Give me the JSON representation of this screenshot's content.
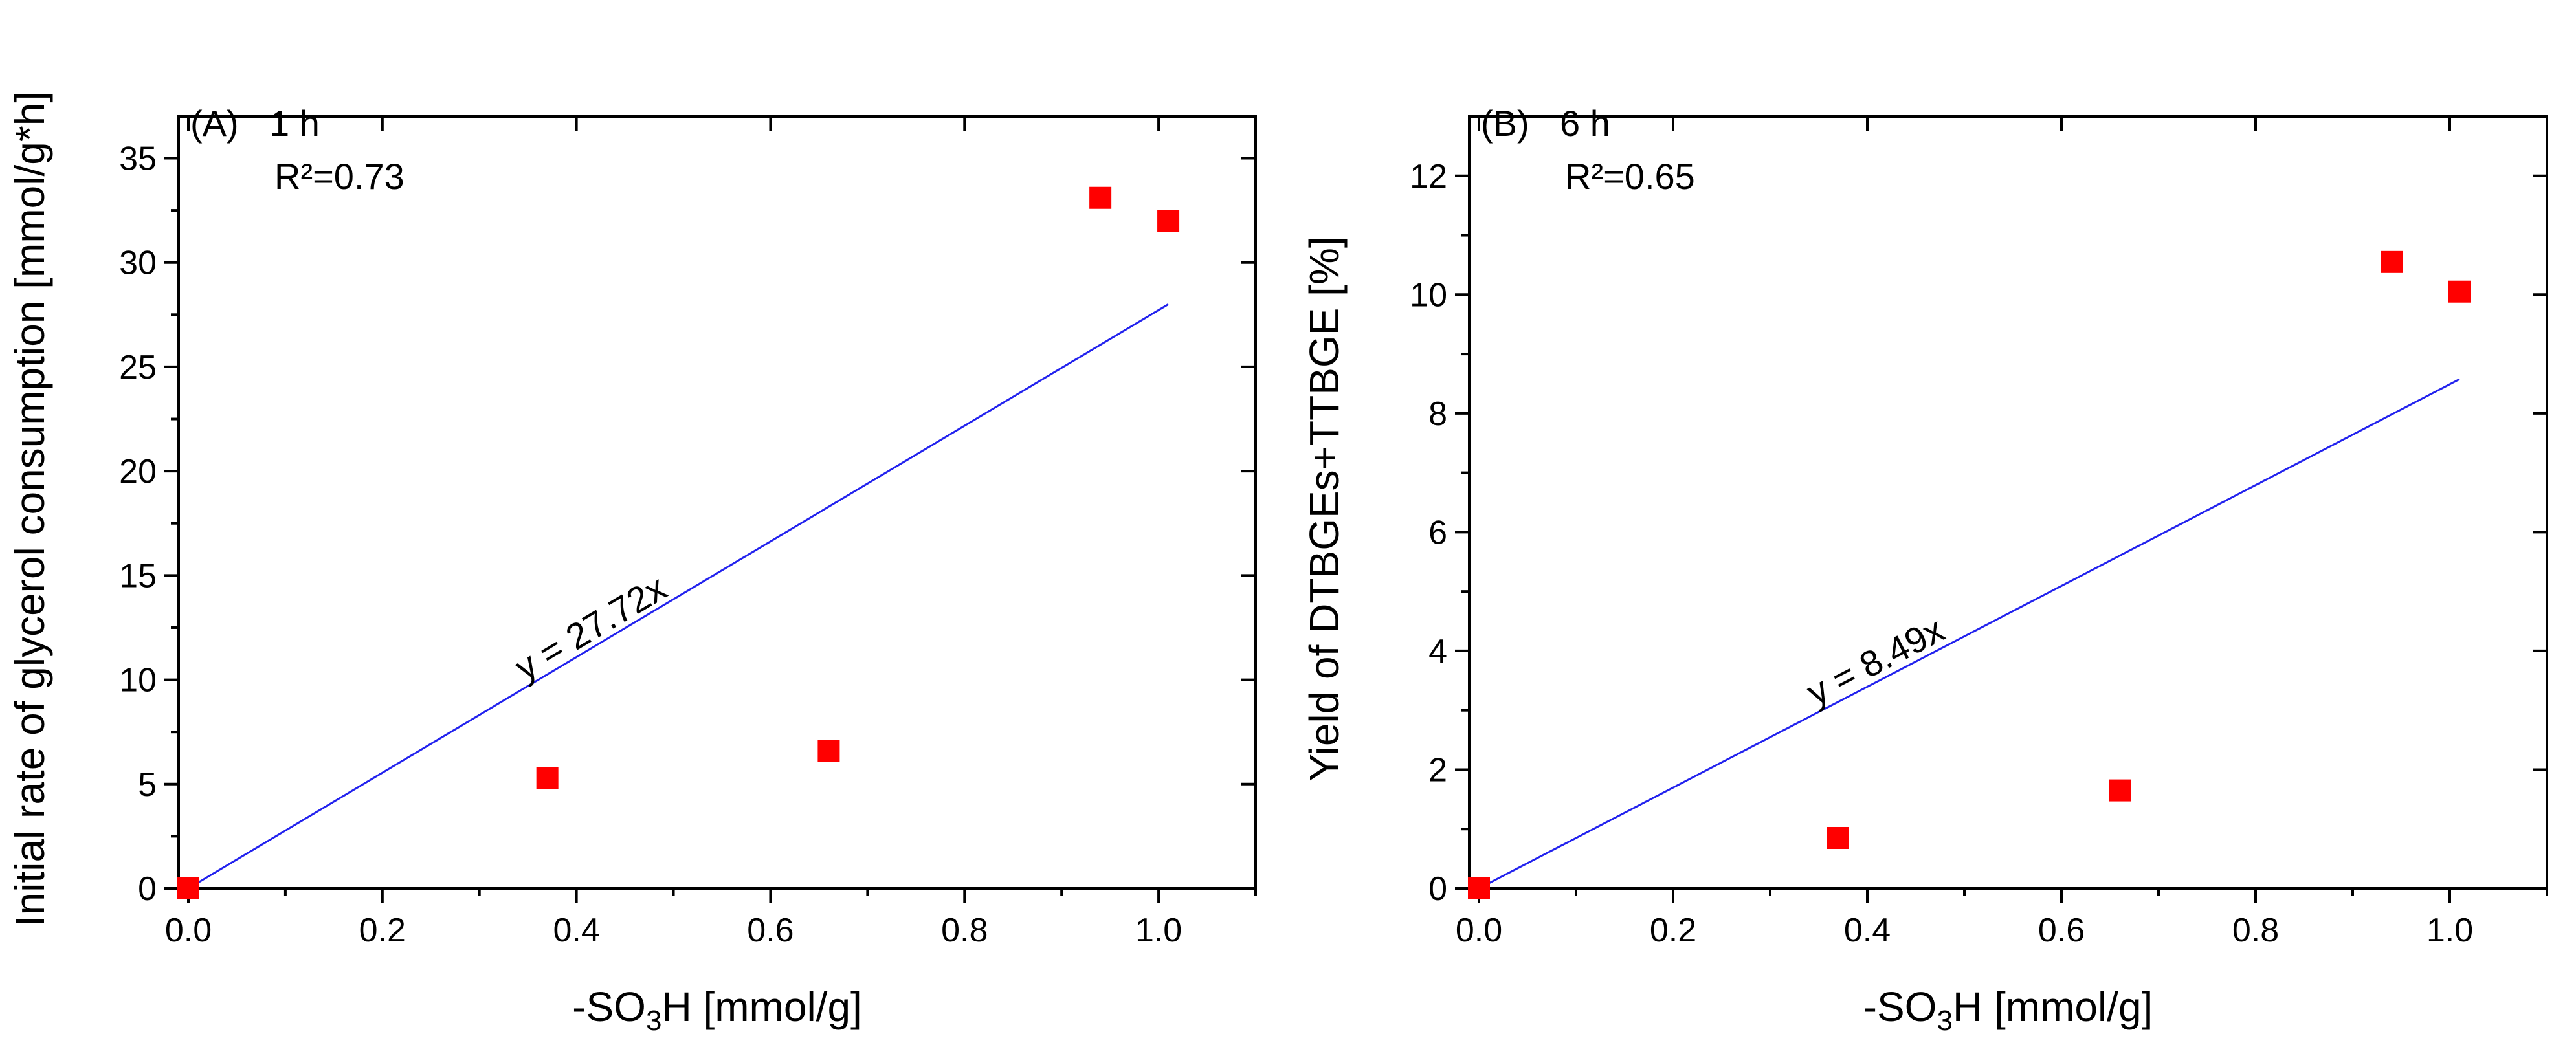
{
  "chart_data": [
    {
      "type": "scatter",
      "panel": "(A)",
      "time_label": "1 h",
      "r2_label": "R²=0.73",
      "equation": "y = 27.72x",
      "fit_slope": 27.72,
      "xlabel_parts": [
        "-SO",
        "3",
        "H [mmol/g]"
      ],
      "ylabel": "Initial rate of glycerol consumption [mmol/g*h]",
      "xlim": [
        -0.01,
        1.1
      ],
      "ylim": [
        0,
        37
      ],
      "xticks": [
        0.0,
        0.2,
        0.4,
        0.6,
        0.8,
        1.0
      ],
      "xtick_labels": [
        "0.0",
        "0.2",
        "0.4",
        "0.6",
        "0.8",
        "1.0"
      ],
      "yticks": [
        0,
        5,
        10,
        15,
        20,
        25,
        30,
        35
      ],
      "ytick_labels": [
        "0",
        "5",
        "10",
        "15",
        "20",
        "25",
        "30",
        "35"
      ],
      "y_minor_step": 2.5,
      "x_minor_step": 0.1,
      "fit_x_range": [
        0,
        1.01
      ],
      "points": [
        {
          "x": 0.0,
          "y": 0.0
        },
        {
          "x": 0.37,
          "y": 5.3
        },
        {
          "x": 0.66,
          "y": 6.6
        },
        {
          "x": 0.94,
          "y": 33.1
        },
        {
          "x": 1.01,
          "y": 32.0
        }
      ]
    },
    {
      "type": "scatter",
      "panel": "(B)",
      "time_label": "6 h",
      "r2_label": "R²=0.65",
      "equation": "y = 8.49x",
      "fit_slope": 8.49,
      "xlabel_parts": [
        "-SO",
        "3",
        "H [mmol/g]"
      ],
      "ylabel": "Yield of DTBGEs+TTBGE [%]",
      "xlim": [
        -0.01,
        1.1
      ],
      "ylim": [
        0,
        13
      ],
      "xticks": [
        0.0,
        0.2,
        0.4,
        0.6,
        0.8,
        1.0
      ],
      "xtick_labels": [
        "0.0",
        "0.2",
        "0.4",
        "0.6",
        "0.8",
        "1.0"
      ],
      "yticks": [
        0,
        2,
        4,
        6,
        8,
        10,
        12
      ],
      "ytick_labels": [
        "0",
        "2",
        "4",
        "6",
        "8",
        "10",
        "12"
      ],
      "y_minor_step": 1,
      "x_minor_step": 0.1,
      "fit_x_range": [
        0,
        1.01
      ],
      "points": [
        {
          "x": 0.0,
          "y": 0.0
        },
        {
          "x": 0.37,
          "y": 0.85
        },
        {
          "x": 0.66,
          "y": 1.65
        },
        {
          "x": 0.94,
          "y": 10.55
        },
        {
          "x": 1.01,
          "y": 10.05
        }
      ]
    }
  ],
  "colors": {
    "marker": "#ff0000",
    "fit_line": "#2222ee",
    "axis": "#000000"
  }
}
